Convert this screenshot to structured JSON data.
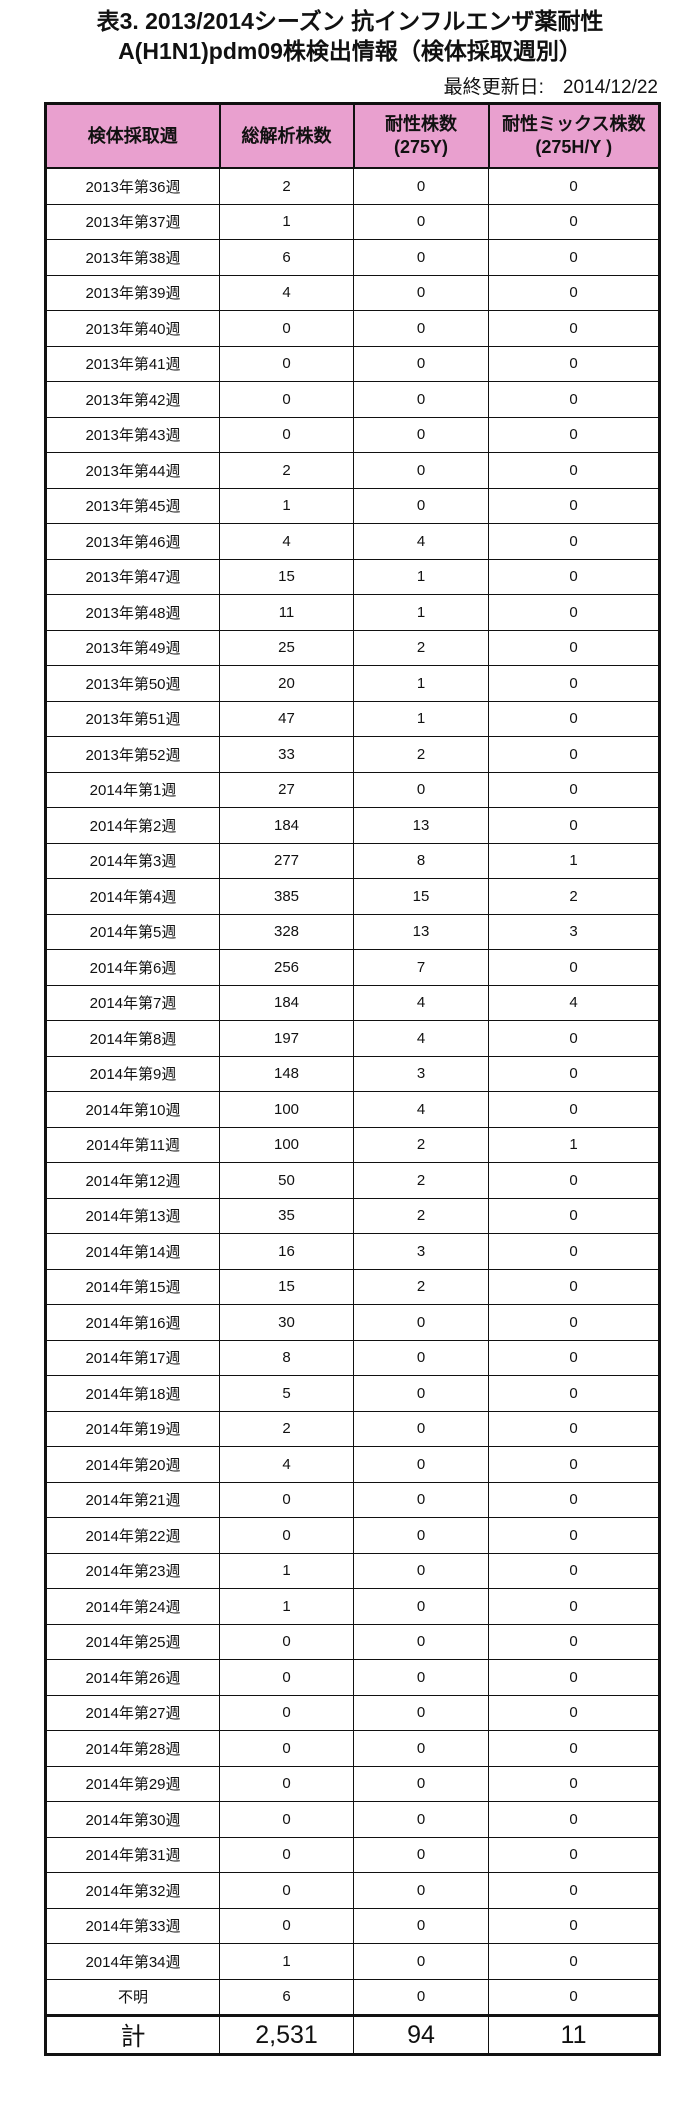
{
  "title_line1": "表3. 2013/2014シーズン 抗インフルエンザ薬耐性",
  "title_line2": "A(H1N1)pdm09株検出情報（検体採取週別）",
  "last_updated": "最終更新日:　2014/12/22",
  "header_color": "#e9a0cf",
  "columns": [
    "検体採取週",
    "総解析株数",
    "耐性株数\n(275Y)",
    "耐性ミックス株数\n(275H/Y )"
  ],
  "rows": [
    [
      "2013年第36週",
      "2",
      "0",
      "0"
    ],
    [
      "2013年第37週",
      "1",
      "0",
      "0"
    ],
    [
      "2013年第38週",
      "6",
      "0",
      "0"
    ],
    [
      "2013年第39週",
      "4",
      "0",
      "0"
    ],
    [
      "2013年第40週",
      "0",
      "0",
      "0"
    ],
    [
      "2013年第41週",
      "0",
      "0",
      "0"
    ],
    [
      "2013年第42週",
      "0",
      "0",
      "0"
    ],
    [
      "2013年第43週",
      "0",
      "0",
      "0"
    ],
    [
      "2013年第44週",
      "2",
      "0",
      "0"
    ],
    [
      "2013年第45週",
      "1",
      "0",
      "0"
    ],
    [
      "2013年第46週",
      "4",
      "4",
      "0"
    ],
    [
      "2013年第47週",
      "15",
      "1",
      "0"
    ],
    [
      "2013年第48週",
      "11",
      "1",
      "0"
    ],
    [
      "2013年第49週",
      "25",
      "2",
      "0"
    ],
    [
      "2013年第50週",
      "20",
      "1",
      "0"
    ],
    [
      "2013年第51週",
      "47",
      "1",
      "0"
    ],
    [
      "2013年第52週",
      "33",
      "2",
      "0"
    ],
    [
      "2014年第1週",
      "27",
      "0",
      "0"
    ],
    [
      "2014年第2週",
      "184",
      "13",
      "0"
    ],
    [
      "2014年第3週",
      "277",
      "8",
      "1"
    ],
    [
      "2014年第4週",
      "385",
      "15",
      "2"
    ],
    [
      "2014年第5週",
      "328",
      "13",
      "3"
    ],
    [
      "2014年第6週",
      "256",
      "7",
      "0"
    ],
    [
      "2014年第7週",
      "184",
      "4",
      "4"
    ],
    [
      "2014年第8週",
      "197",
      "4",
      "0"
    ],
    [
      "2014年第9週",
      "148",
      "3",
      "0"
    ],
    [
      "2014年第10週",
      "100",
      "4",
      "0"
    ],
    [
      "2014年第11週",
      "100",
      "2",
      "1"
    ],
    [
      "2014年第12週",
      "50",
      "2",
      "0"
    ],
    [
      "2014年第13週",
      "35",
      "2",
      "0"
    ],
    [
      "2014年第14週",
      "16",
      "3",
      "0"
    ],
    [
      "2014年第15週",
      "15",
      "2",
      "0"
    ],
    [
      "2014年第16週",
      "30",
      "0",
      "0"
    ],
    [
      "2014年第17週",
      "8",
      "0",
      "0"
    ],
    [
      "2014年第18週",
      "5",
      "0",
      "0"
    ],
    [
      "2014年第19週",
      "2",
      "0",
      "0"
    ],
    [
      "2014年第20週",
      "4",
      "0",
      "0"
    ],
    [
      "2014年第21週",
      "0",
      "0",
      "0"
    ],
    [
      "2014年第22週",
      "0",
      "0",
      "0"
    ],
    [
      "2014年第23週",
      "1",
      "0",
      "0"
    ],
    [
      "2014年第24週",
      "1",
      "0",
      "0"
    ],
    [
      "2014年第25週",
      "0",
      "0",
      "0"
    ],
    [
      "2014年第26週",
      "0",
      "0",
      "0"
    ],
    [
      "2014年第27週",
      "0",
      "0",
      "0"
    ],
    [
      "2014年第28週",
      "0",
      "0",
      "0"
    ],
    [
      "2014年第29週",
      "0",
      "0",
      "0"
    ],
    [
      "2014年第30週",
      "0",
      "0",
      "0"
    ],
    [
      "2014年第31週",
      "0",
      "0",
      "0"
    ],
    [
      "2014年第32週",
      "0",
      "0",
      "0"
    ],
    [
      "2014年第33週",
      "0",
      "0",
      "0"
    ],
    [
      "2014年第34週",
      "1",
      "0",
      "0"
    ],
    [
      "不明",
      "6",
      "0",
      "0"
    ]
  ],
  "total": [
    "計",
    "2,531",
    "94",
    "11"
  ]
}
